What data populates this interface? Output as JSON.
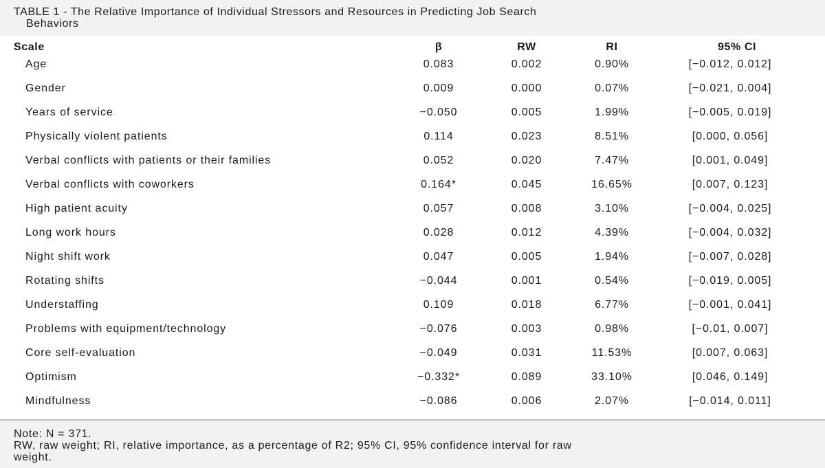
{
  "table": {
    "title_line1": "TABLE 1 - The Relative Importance of Individual Stressors and Resources in Predicting Job Search",
    "title_line2": "Behaviors",
    "columns": [
      "Scale",
      "β",
      "RW",
      "RI",
      "95% CI"
    ],
    "rows": [
      {
        "scale": "Age",
        "beta": "0.083",
        "rw": "0.002",
        "ri": "0.90%",
        "ci": "[−0.012, 0.012]"
      },
      {
        "scale": "Gender",
        "beta": "0.009",
        "rw": "0.000",
        "ri": "0.07%",
        "ci": "[−0.021, 0.004]"
      },
      {
        "scale": "Years of service",
        "beta": "−0.050",
        "rw": "0.005",
        "ri": "1.99%",
        "ci": "[−0.005, 0.019]"
      },
      {
        "scale": "Physically violent patients",
        "beta": "0.114",
        "rw": "0.023",
        "ri": "8.51%",
        "ci": "[0.000, 0.056]"
      },
      {
        "scale": "Verbal conflicts with patients or their families",
        "beta": "0.052",
        "rw": "0.020",
        "ri": "7.47%",
        "ci": "[0.001, 0.049]"
      },
      {
        "scale": "Verbal conflicts with coworkers",
        "beta": "0.164*",
        "rw": "0.045",
        "ri": "16.65%",
        "ci": "[0.007, 0.123]"
      },
      {
        "scale": "High patient acuity",
        "beta": "0.057",
        "rw": "0.008",
        "ri": "3.10%",
        "ci": "[−0.004, 0.025]"
      },
      {
        "scale": "Long work hours",
        "beta": "0.028",
        "rw": "0.012",
        "ri": "4.39%",
        "ci": "[−0.004, 0.032]"
      },
      {
        "scale": "Night shift work",
        "beta": "0.047",
        "rw": "0.005",
        "ri": "1.94%",
        "ci": "[−0.007, 0.028]"
      },
      {
        "scale": "Rotating shifts",
        "beta": "−0.044",
        "rw": "0.001",
        "ri": "0.54%",
        "ci": "[−0.019, 0.005]"
      },
      {
        "scale": "Understaffing",
        "beta": "0.109",
        "rw": "0.018",
        "ri": "6.77%",
        "ci": "[−0.001, 0.041]"
      },
      {
        "scale": "Problems with equipment/technology",
        "beta": "−0.076",
        "rw": "0.003",
        "ri": "0.98%",
        "ci": "[−0.01, 0.007]"
      },
      {
        "scale": "Core self-evaluation",
        "beta": "−0.049",
        "rw": "0.031",
        "ri": "11.53%",
        "ci": "[0.007, 0.063]"
      },
      {
        "scale": "Optimism",
        "beta": "−0.332*",
        "rw": "0.089",
        "ri": "33.10%",
        "ci": "[0.046, 0.149]"
      },
      {
        "scale": "Mindfulness",
        "beta": "−0.086",
        "rw": "0.006",
        "ri": "2.07%",
        "ci": "[−0.014, 0.011]"
      }
    ],
    "note_line1": "Note: N = 371.",
    "note_line2": "RW, raw weight; RI, relative importance, as a percentage of R2; 95% CI, 95% confidence interval for raw",
    "note_line3": "weight."
  }
}
